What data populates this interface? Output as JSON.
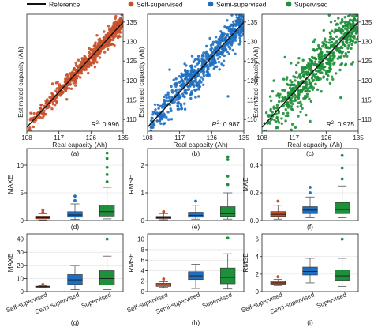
{
  "colors": {
    "self": "#c8502a",
    "semi": "#1f6fc0",
    "sup": "#1e8f3a",
    "reference": "#111111"
  },
  "legend": {
    "reference": "Reference",
    "self": "Self-supervised",
    "semi": "Semi-supervised",
    "sup": "Supervised"
  },
  "chart_data": [
    {
      "type": "scatter",
      "panel": "(a)",
      "series_key": "self",
      "xlabel": "Real capacity (Ah)",
      "ylabel": "Estimated capacity (Ah)",
      "xlim": [
        108,
        135
      ],
      "ylim": [
        107,
        137
      ],
      "xticks": [
        108,
        117,
        126,
        135
      ],
      "yticks": [
        110,
        115,
        120,
        125,
        130,
        135
      ],
      "r2_prefix": "R",
      "r2_sup": "2",
      "r2_value": ": 0.996",
      "spread": 1.3
    },
    {
      "type": "scatter",
      "panel": "(b)",
      "series_key": "semi",
      "xlabel": "Real capacity (Ah)",
      "ylabel": "Estimated capacity (Ah)",
      "xlim": [
        108,
        135
      ],
      "ylim": [
        107,
        137
      ],
      "xticks": [
        108,
        117,
        126,
        135
      ],
      "yticks": [
        110,
        115,
        120,
        125,
        130,
        135
      ],
      "r2_prefix": "R",
      "r2_sup": "2",
      "r2_value": ": 0.987",
      "spread": 2.6
    },
    {
      "type": "scatter",
      "panel": "(c)",
      "series_key": "sup",
      "xlabel": "Real capacity (Ah)",
      "ylabel": "Estimated capacity (Ah)",
      "xlim": [
        108,
        135
      ],
      "ylim": [
        107,
        137
      ],
      "xticks": [
        108,
        117,
        126,
        135
      ],
      "yticks": [
        110,
        115,
        120,
        125,
        130,
        135
      ],
      "r2_prefix": "R",
      "r2_sup": "2",
      "r2_value": ": 0.975",
      "spread": 3.6
    },
    {
      "type": "box",
      "panel": "(d)",
      "ylabel": "MAXE",
      "ylim": [
        0,
        13
      ],
      "yticks": [
        0,
        5,
        10
      ],
      "boxes": [
        {
          "key": "self",
          "whislo": 0.1,
          "q1": 0.3,
          "med": 0.5,
          "q3": 0.8,
          "whishi": 1.2,
          "fliers": [
            1.5,
            1.9
          ]
        },
        {
          "key": "semi",
          "whislo": 0.2,
          "q1": 0.6,
          "med": 1.0,
          "q3": 1.6,
          "whishi": 3.0,
          "fliers": [
            3.6,
            4.4
          ]
        },
        {
          "key": "sup",
          "whislo": 0.3,
          "q1": 0.8,
          "med": 1.6,
          "q3": 2.8,
          "whishi": 6.0,
          "fliers": [
            7.0,
            8.3,
            9.6,
            11.2,
            12.2
          ]
        }
      ]
    },
    {
      "type": "box",
      "panel": "(e)",
      "ylabel": "RMSE",
      "ylim": [
        0,
        2.6
      ],
      "yticks": [
        0,
        1,
        2
      ],
      "boxes": [
        {
          "key": "self",
          "whislo": 0.03,
          "q1": 0.07,
          "med": 0.1,
          "q3": 0.15,
          "whishi": 0.25,
          "fliers": [
            0.32
          ]
        },
        {
          "key": "semi",
          "whislo": 0.05,
          "q1": 0.12,
          "med": 0.18,
          "q3": 0.3,
          "whishi": 0.55,
          "fliers": [
            0.7
          ]
        },
        {
          "key": "sup",
          "whislo": 0.05,
          "q1": 0.15,
          "med": 0.25,
          "q3": 0.5,
          "whishi": 1.0,
          "fliers": [
            1.3,
            1.6,
            2.2,
            2.3
          ]
        }
      ]
    },
    {
      "type": "box",
      "panel": "(f)",
      "ylabel": "MAE",
      "ylim": [
        0,
        0.52
      ],
      "yticks": [
        0,
        0.2,
        0.4
      ],
      "yticklabels": [
        "0.0",
        "0.2",
        "0.4"
      ],
      "boxes": [
        {
          "key": "self",
          "whislo": 0.01,
          "q1": 0.03,
          "med": 0.045,
          "q3": 0.065,
          "whishi": 0.11,
          "fliers": [
            0.14
          ]
        },
        {
          "key": "semi",
          "whislo": 0.02,
          "q1": 0.05,
          "med": 0.075,
          "q3": 0.1,
          "whishi": 0.17,
          "fliers": [
            0.2,
            0.24
          ]
        },
        {
          "key": "sup",
          "whislo": 0.02,
          "q1": 0.05,
          "med": 0.08,
          "q3": 0.13,
          "whishi": 0.25,
          "fliers": [
            0.3,
            0.38,
            0.47
          ]
        }
      ]
    },
    {
      "type": "box",
      "panel": "(g)",
      "ylabel": "MAXE",
      "ylim": [
        0,
        44
      ],
      "yticks": [
        0,
        10,
        20,
        30,
        40
      ],
      "categories": [
        "Self-supervised",
        "Semi-supervised",
        "Supervised"
      ],
      "boxes": [
        {
          "key": "self",
          "whislo": 3.0,
          "q1": 3.3,
          "med": 3.8,
          "q3": 4.2,
          "whishi": 4.6,
          "fliers": [
            5.5
          ]
        },
        {
          "key": "semi",
          "whislo": 1.5,
          "q1": 5.5,
          "med": 9.0,
          "q3": 13.0,
          "whishi": 20.0,
          "fliers": []
        },
        {
          "key": "sup",
          "whislo": 1.5,
          "q1": 5.0,
          "med": 10.0,
          "q3": 16.0,
          "whishi": 27.0,
          "fliers": [
            40.0
          ]
        }
      ]
    },
    {
      "type": "box",
      "panel": "(h)",
      "ylabel": "RMSE",
      "ylim": [
        0,
        11
      ],
      "yticks": [
        0,
        2,
        4,
        6,
        8,
        10
      ],
      "categories": [
        "Self-supervised",
        "Semi-supervised",
        "Supervised"
      ],
      "boxes": [
        {
          "key": "self",
          "whislo": 0.8,
          "q1": 1.0,
          "med": 1.3,
          "q3": 1.6,
          "whishi": 1.9,
          "fliers": [
            2.4
          ]
        },
        {
          "key": "semi",
          "whislo": 0.6,
          "q1": 2.3,
          "med": 3.0,
          "q3": 3.8,
          "whishi": 5.2,
          "fliers": []
        },
        {
          "key": "sup",
          "whislo": 0.5,
          "q1": 1.5,
          "med": 2.7,
          "q3": 4.5,
          "whishi": 7.2,
          "fliers": [
            10.2
          ]
        }
      ]
    },
    {
      "type": "box",
      "panel": "(i)",
      "ylabel": "RMSE",
      "ylim": [
        0,
        6.6
      ],
      "yticks": [
        0,
        2,
        4,
        6
      ],
      "categories": [
        "Self-supervised",
        "Semi-supervised",
        "Supervised"
      ],
      "boxes": [
        {
          "key": "self",
          "whislo": 0.7,
          "q1": 0.85,
          "med": 1.0,
          "q3": 1.2,
          "whishi": 1.4,
          "fliers": [
            1.7
          ]
        },
        {
          "key": "semi",
          "whislo": 1.0,
          "q1": 1.9,
          "med": 2.3,
          "q3": 2.8,
          "whishi": 3.8,
          "fliers": []
        },
        {
          "key": "sup",
          "whislo": 0.6,
          "q1": 1.3,
          "med": 1.8,
          "q3": 2.5,
          "whishi": 3.8,
          "fliers": [
            6.0
          ]
        }
      ]
    }
  ]
}
